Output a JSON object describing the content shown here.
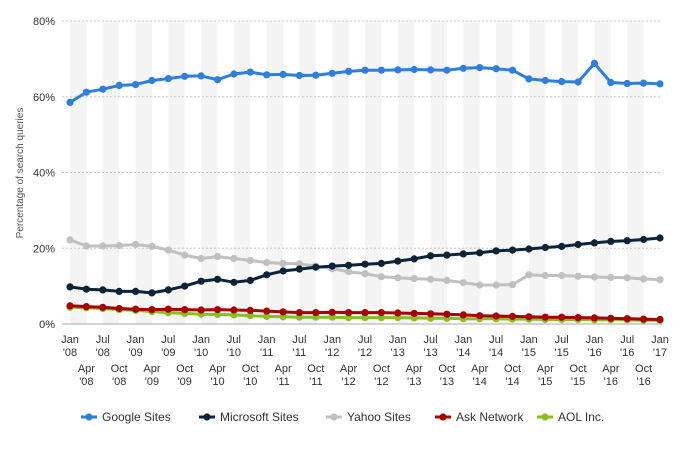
{
  "chart_data": {
    "type": "line",
    "ylabel": "Percentage of search queries",
    "ylim": [
      0,
      80
    ],
    "y_ticks": [
      {
        "value": 0,
        "label": "0%"
      },
      {
        "value": 20,
        "label": "20%"
      },
      {
        "value": 40,
        "label": "40%"
      },
      {
        "value": 60,
        "label": "60%"
      },
      {
        "value": 80,
        "label": "80%"
      }
    ],
    "x_tick_labels_row1": [
      {
        "i": 0,
        "l1": "Jan",
        "l2": "'08"
      },
      {
        "i": 2,
        "l1": "Jul",
        "l2": "'08"
      },
      {
        "i": 4,
        "l1": "Jan",
        "l2": "'09"
      },
      {
        "i": 6,
        "l1": "Jul",
        "l2": "'09"
      },
      {
        "i": 8,
        "l1": "Jan",
        "l2": "'10"
      },
      {
        "i": 10,
        "l1": "Jul",
        "l2": "'10"
      },
      {
        "i": 12,
        "l1": "Jan",
        "l2": "'11"
      },
      {
        "i": 14,
        "l1": "Jul",
        "l2": "'11"
      },
      {
        "i": 16,
        "l1": "Jan",
        "l2": "'12"
      },
      {
        "i": 18,
        "l1": "Jul",
        "l2": "'12"
      },
      {
        "i": 20,
        "l1": "Jan",
        "l2": "'13"
      },
      {
        "i": 22,
        "l1": "Jul",
        "l2": "'13"
      },
      {
        "i": 24,
        "l1": "Jan",
        "l2": "'14"
      },
      {
        "i": 26,
        "l1": "Jul",
        "l2": "'14"
      },
      {
        "i": 28,
        "l1": "Jan",
        "l2": "'15"
      },
      {
        "i": 30,
        "l1": "Jul",
        "l2": "'15"
      },
      {
        "i": 32,
        "l1": "Jan",
        "l2": "'16"
      },
      {
        "i": 34,
        "l1": "Jul",
        "l2": "'16"
      },
      {
        "i": 36,
        "l1": "Jan",
        "l2": "'17"
      }
    ],
    "x_tick_labels_row2": [
      {
        "i": 1,
        "l1": "Apr",
        "l2": "'08"
      },
      {
        "i": 3,
        "l1": "Oct",
        "l2": "'08"
      },
      {
        "i": 5,
        "l1": "Apr",
        "l2": "'09"
      },
      {
        "i": 7,
        "l1": "Oct",
        "l2": "'09"
      },
      {
        "i": 9,
        "l1": "Apr",
        "l2": "'10"
      },
      {
        "i": 11,
        "l1": "Oct",
        "l2": "'10"
      },
      {
        "i": 13,
        "l1": "Apr",
        "l2": "'11"
      },
      {
        "i": 15,
        "l1": "Oct",
        "l2": "'11"
      },
      {
        "i": 17,
        "l1": "Apr",
        "l2": "'12"
      },
      {
        "i": 19,
        "l1": "Oct",
        "l2": "'12"
      },
      {
        "i": 21,
        "l1": "Apr",
        "l2": "'13"
      },
      {
        "i": 23,
        "l1": "Oct",
        "l2": "'13"
      },
      {
        "i": 25,
        "l1": "Apr",
        "l2": "'14"
      },
      {
        "i": 27,
        "l1": "Oct",
        "l2": "'14"
      },
      {
        "i": 29,
        "l1": "Apr",
        "l2": "'15"
      },
      {
        "i": 31,
        "l1": "Oct",
        "l2": "'15"
      },
      {
        "i": 33,
        "l1": "Apr",
        "l2": "'16"
      },
      {
        "i": 35,
        "l1": "Oct",
        "l2": "'16"
      }
    ],
    "series": [
      {
        "name": "Google Sites",
        "color": "#2f7ed8",
        "values": [
          58.5,
          61.2,
          62.0,
          63.0,
          63.2,
          64.3,
          64.8,
          65.4,
          65.5,
          64.5,
          66.0,
          66.5,
          65.8,
          65.9,
          65.6,
          65.7,
          66.2,
          66.7,
          67.0,
          67.0,
          67.1,
          67.2,
          67.1,
          67.0,
          67.5,
          67.7,
          67.4,
          67.0,
          64.7,
          64.3,
          64.0,
          63.9,
          68.8,
          63.8,
          63.5,
          63.6,
          63.4
        ]
      },
      {
        "name": "Microsoft Sites",
        "color": "#0d233a",
        "values": [
          9.8,
          9.2,
          9.0,
          8.6,
          8.6,
          8.2,
          9.0,
          10.0,
          11.3,
          11.8,
          11.0,
          11.5,
          13.0,
          14.0,
          14.5,
          15.0,
          15.3,
          15.5,
          15.8,
          16.0,
          16.6,
          17.2,
          18.0,
          18.2,
          18.5,
          18.8,
          19.3,
          19.5,
          19.8,
          20.2,
          20.5,
          21.0,
          21.4,
          21.8,
          22.0,
          22.3,
          22.7
        ]
      },
      {
        "name": "Yahoo Sites",
        "color": "#c0c0c0",
        "values": [
          22.2,
          20.6,
          20.6,
          20.7,
          21.0,
          20.5,
          19.5,
          18.2,
          17.3,
          17.8,
          17.3,
          16.8,
          16.2,
          16.0,
          15.9,
          15.3,
          14.6,
          13.8,
          13.3,
          12.5,
          12.2,
          12.0,
          11.8,
          11.5,
          10.9,
          10.3,
          10.3,
          10.4,
          13.0,
          12.8,
          12.8,
          12.6,
          12.4,
          12.3,
          12.2,
          11.9,
          11.7
        ]
      },
      {
        "name": "Ask Network",
        "color": "#a50000",
        "values": [
          4.8,
          4.6,
          4.4,
          4.1,
          3.9,
          3.8,
          3.9,
          3.8,
          3.7,
          3.8,
          3.7,
          3.6,
          3.4,
          3.2,
          3.0,
          3.0,
          3.1,
          3.0,
          3.0,
          3.0,
          2.9,
          2.8,
          2.7,
          2.6,
          2.4,
          2.2,
          2.1,
          2.0,
          1.9,
          1.8,
          1.8,
          1.7,
          1.6,
          1.5,
          1.4,
          1.3,
          1.2
        ]
      },
      {
        "name": "AOL Inc.",
        "color": "#8bbc21",
        "values": [
          4.4,
          4.3,
          4.1,
          3.8,
          3.6,
          3.3,
          3.0,
          2.8,
          2.6,
          2.5,
          2.4,
          2.2,
          2.0,
          1.9,
          1.8,
          1.8,
          1.8,
          1.7,
          1.7,
          1.7,
          1.7,
          1.6,
          1.5,
          1.5,
          1.4,
          1.4,
          1.4,
          1.3,
          1.3,
          1.2,
          1.2,
          1.2,
          1.1,
          1.1,
          1.1,
          1.0,
          1.0
        ]
      }
    ]
  }
}
